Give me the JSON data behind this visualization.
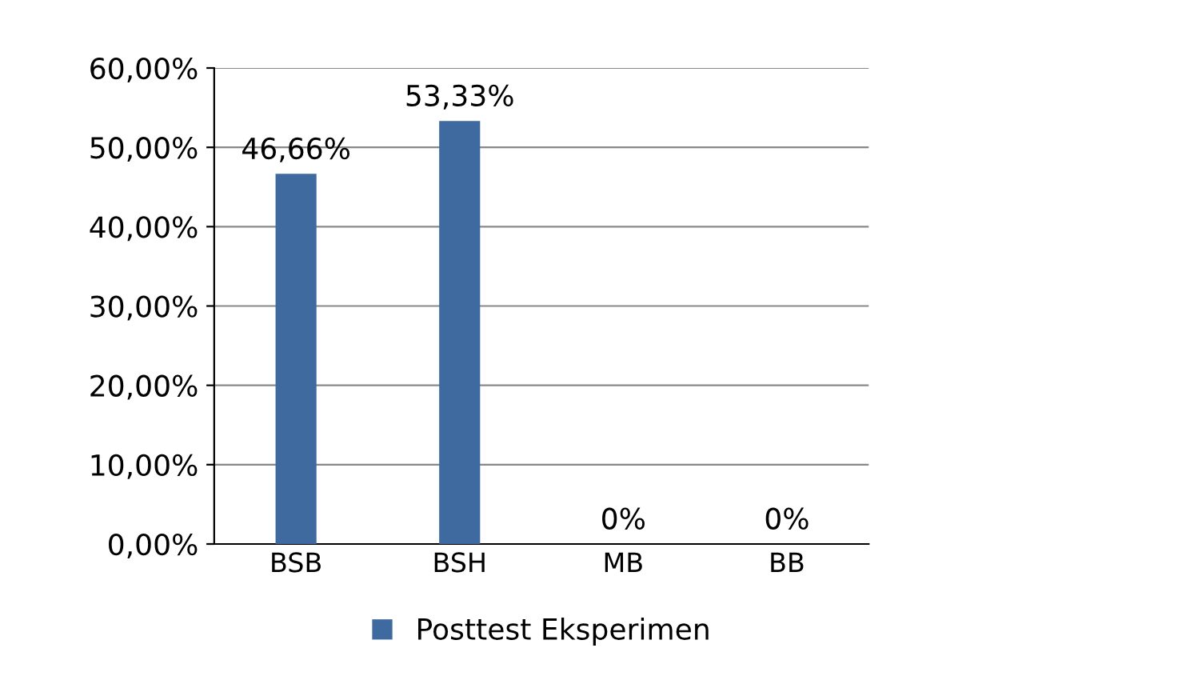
{
  "chart_data": {
    "type": "bar",
    "categories": [
      "BSB",
      "BSH",
      "MB",
      "BB"
    ],
    "series": [
      {
        "name": "Posttest Eksperimen",
        "color": "#3f6aa0",
        "values": [
          46.66,
          53.33,
          0,
          0
        ],
        "value_labels": [
          "46,66%",
          "53,33%",
          "0%",
          "0%"
        ]
      }
    ],
    "ylim": [
      0,
      60
    ],
    "yticks": [
      {
        "value": 0,
        "label": "0,00%"
      },
      {
        "value": 10,
        "label": "10,00%"
      },
      {
        "value": 20,
        "label": "20,00%"
      },
      {
        "value": 30,
        "label": "30,00%"
      },
      {
        "value": 40,
        "label": "40,00%"
      },
      {
        "value": 50,
        "label": "50,00%"
      },
      {
        "value": 60,
        "label": "60,00%"
      }
    ],
    "grid": "y",
    "legend": "bottom"
  }
}
